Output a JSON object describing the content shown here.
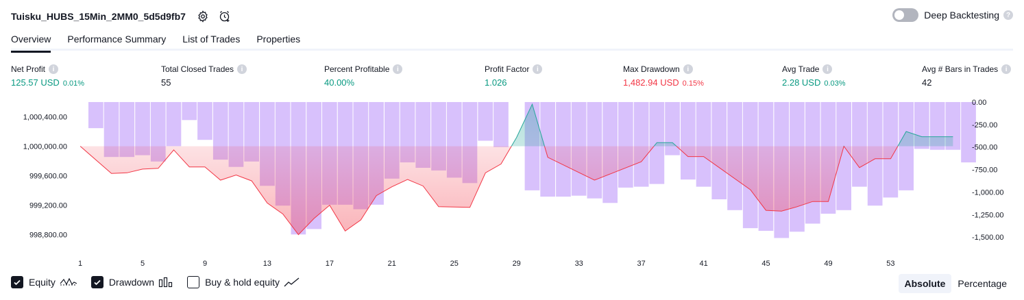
{
  "header": {
    "title": "Tuisku_HUBS_15Min_2MM0_5d5d9fb7",
    "icons": [
      "settings-icon",
      "add-alert-icon"
    ]
  },
  "deep_backtesting": {
    "label": "Deep Backtesting",
    "enabled": false,
    "help": "?"
  },
  "tabs": [
    {
      "label": "Overview",
      "active": true
    },
    {
      "label": "Performance Summary",
      "active": false
    },
    {
      "label": "List of Trades",
      "active": false
    },
    {
      "label": "Properties",
      "active": false
    }
  ],
  "metrics": [
    {
      "label": "Net Profit",
      "value": "125.57 USD",
      "pct": "0.01%",
      "tone": "pos"
    },
    {
      "label": "Total Closed Trades",
      "value": "55",
      "pct": "",
      "tone": "neu"
    },
    {
      "label": "Percent Profitable",
      "value": "40.00%",
      "pct": "",
      "tone": "pos"
    },
    {
      "label": "Profit Factor",
      "value": "1.026",
      "pct": "",
      "tone": "pos"
    },
    {
      "label": "Max Drawdown",
      "value": "1,482.94 USD",
      "pct": "0.15%",
      "tone": "neg"
    },
    {
      "label": "Avg Trade",
      "value": "2.28 USD",
      "pct": "0.03%",
      "tone": "pos"
    },
    {
      "label": "Avg # Bars in Trades",
      "value": "42",
      "pct": "",
      "tone": "neu"
    }
  ],
  "info_glyph": "i",
  "chart_data": {
    "type": "line",
    "equity_axis": {
      "ticks": [
        "1,000,400.00",
        "1,000,000.00",
        "999,600.00",
        "999,200.00",
        "998,800.00"
      ],
      "tick_values": [
        1000400,
        1000000,
        999600,
        999200,
        998800
      ],
      "range": [
        998620,
        1000600
      ]
    },
    "drawdown_axis": {
      "ticks": [
        "0.00",
        "-250.00",
        "-500.00",
        "-750.00",
        "-1,000.00",
        "-1,250.00",
        "-1,500.00"
      ],
      "tick_values": [
        0,
        -250,
        -500,
        -750,
        -1000,
        -1250,
        -1500
      ],
      "range": [
        -1620,
        0
      ]
    },
    "x_ticks": [
      "1",
      "5",
      "9",
      "13",
      "17",
      "21",
      "25",
      "29",
      "33",
      "37",
      "41",
      "45",
      "49",
      "53"
    ],
    "x_tick_values": [
      1,
      5,
      9,
      13,
      17,
      21,
      25,
      29,
      33,
      37,
      41,
      45,
      49,
      53
    ],
    "x_range": [
      0.6,
      57.6
    ],
    "baseline": 1000000,
    "equity": [
      [
        1,
        1000000
      ],
      [
        3,
        999630
      ],
      [
        4,
        999640
      ],
      [
        5,
        999690
      ],
      [
        6,
        999700
      ],
      [
        7,
        999950
      ],
      [
        8,
        999720
      ],
      [
        9,
        999720
      ],
      [
        10,
        999540
      ],
      [
        11,
        999610
      ],
      [
        12,
        999530
      ],
      [
        13,
        999230
      ],
      [
        14,
        999080
      ],
      [
        15,
        998800
      ],
      [
        16,
        999020
      ],
      [
        17,
        999200
      ],
      [
        18,
        998850
      ],
      [
        19,
        999000
      ],
      [
        20,
        999330
      ],
      [
        21,
        999450
      ],
      [
        22,
        999550
      ],
      [
        23,
        999460
      ],
      [
        24,
        999180
      ],
      [
        26,
        999170
      ],
      [
        27,
        999640
      ],
      [
        28,
        999760
      ],
      [
        29,
        1000120
      ],
      [
        30,
        1000570
      ],
      [
        31,
        999850
      ],
      [
        34,
        999540
      ],
      [
        37,
        999790
      ],
      [
        38,
        1000050
      ],
      [
        39,
        1000050
      ],
      [
        40,
        999860
      ],
      [
        41,
        999860
      ],
      [
        42,
        999710
      ],
      [
        44,
        999410
      ],
      [
        45,
        999130
      ],
      [
        46,
        999120
      ],
      [
        47,
        999180
      ],
      [
        48,
        999250
      ],
      [
        49,
        999250
      ],
      [
        50,
        1000000
      ],
      [
        51,
        999710
      ],
      [
        52,
        999830
      ],
      [
        53,
        999830
      ],
      [
        54,
        1000200
      ],
      [
        55,
        1000130
      ],
      [
        57,
        1000130
      ]
    ],
    "drawdown_bars": [
      0,
      -290,
      -610,
      -610,
      -590,
      -660,
      -490,
      -200,
      -420,
      -640,
      -720,
      -660,
      -930,
      -1150,
      -1470,
      -1410,
      -1140,
      -1140,
      -1190,
      -1140,
      -850,
      -670,
      -730,
      -760,
      -840,
      -900,
      -430,
      -500,
      0,
      -980,
      -1050,
      -1050,
      -1040,
      -1070,
      -1120,
      -950,
      -940,
      -910,
      -590,
      -860,
      -940,
      -1080,
      -1200,
      -1400,
      -1430,
      -1510,
      -1440,
      -1350,
      -1240,
      -1200,
      -940,
      -1150,
      -1060,
      -980,
      -520,
      -530,
      -530,
      -670
    ],
    "series": [
      {
        "name": "Equity",
        "color_up": "#26a69a",
        "color_down": "#f23645"
      },
      {
        "name": "Drawdown",
        "color": "#d1b6fb"
      }
    ]
  },
  "legend": [
    {
      "label": "Equity",
      "checked": true,
      "icon": "equity-line-icon"
    },
    {
      "label": "Drawdown",
      "checked": true,
      "icon": "drawdown-bars-icon"
    },
    {
      "label": "Buy & hold equity",
      "checked": false,
      "icon": "buy-hold-line-icon"
    }
  ],
  "mode": [
    {
      "label": "Absolute",
      "active": true
    },
    {
      "label": "Percentage",
      "active": false
    }
  ]
}
